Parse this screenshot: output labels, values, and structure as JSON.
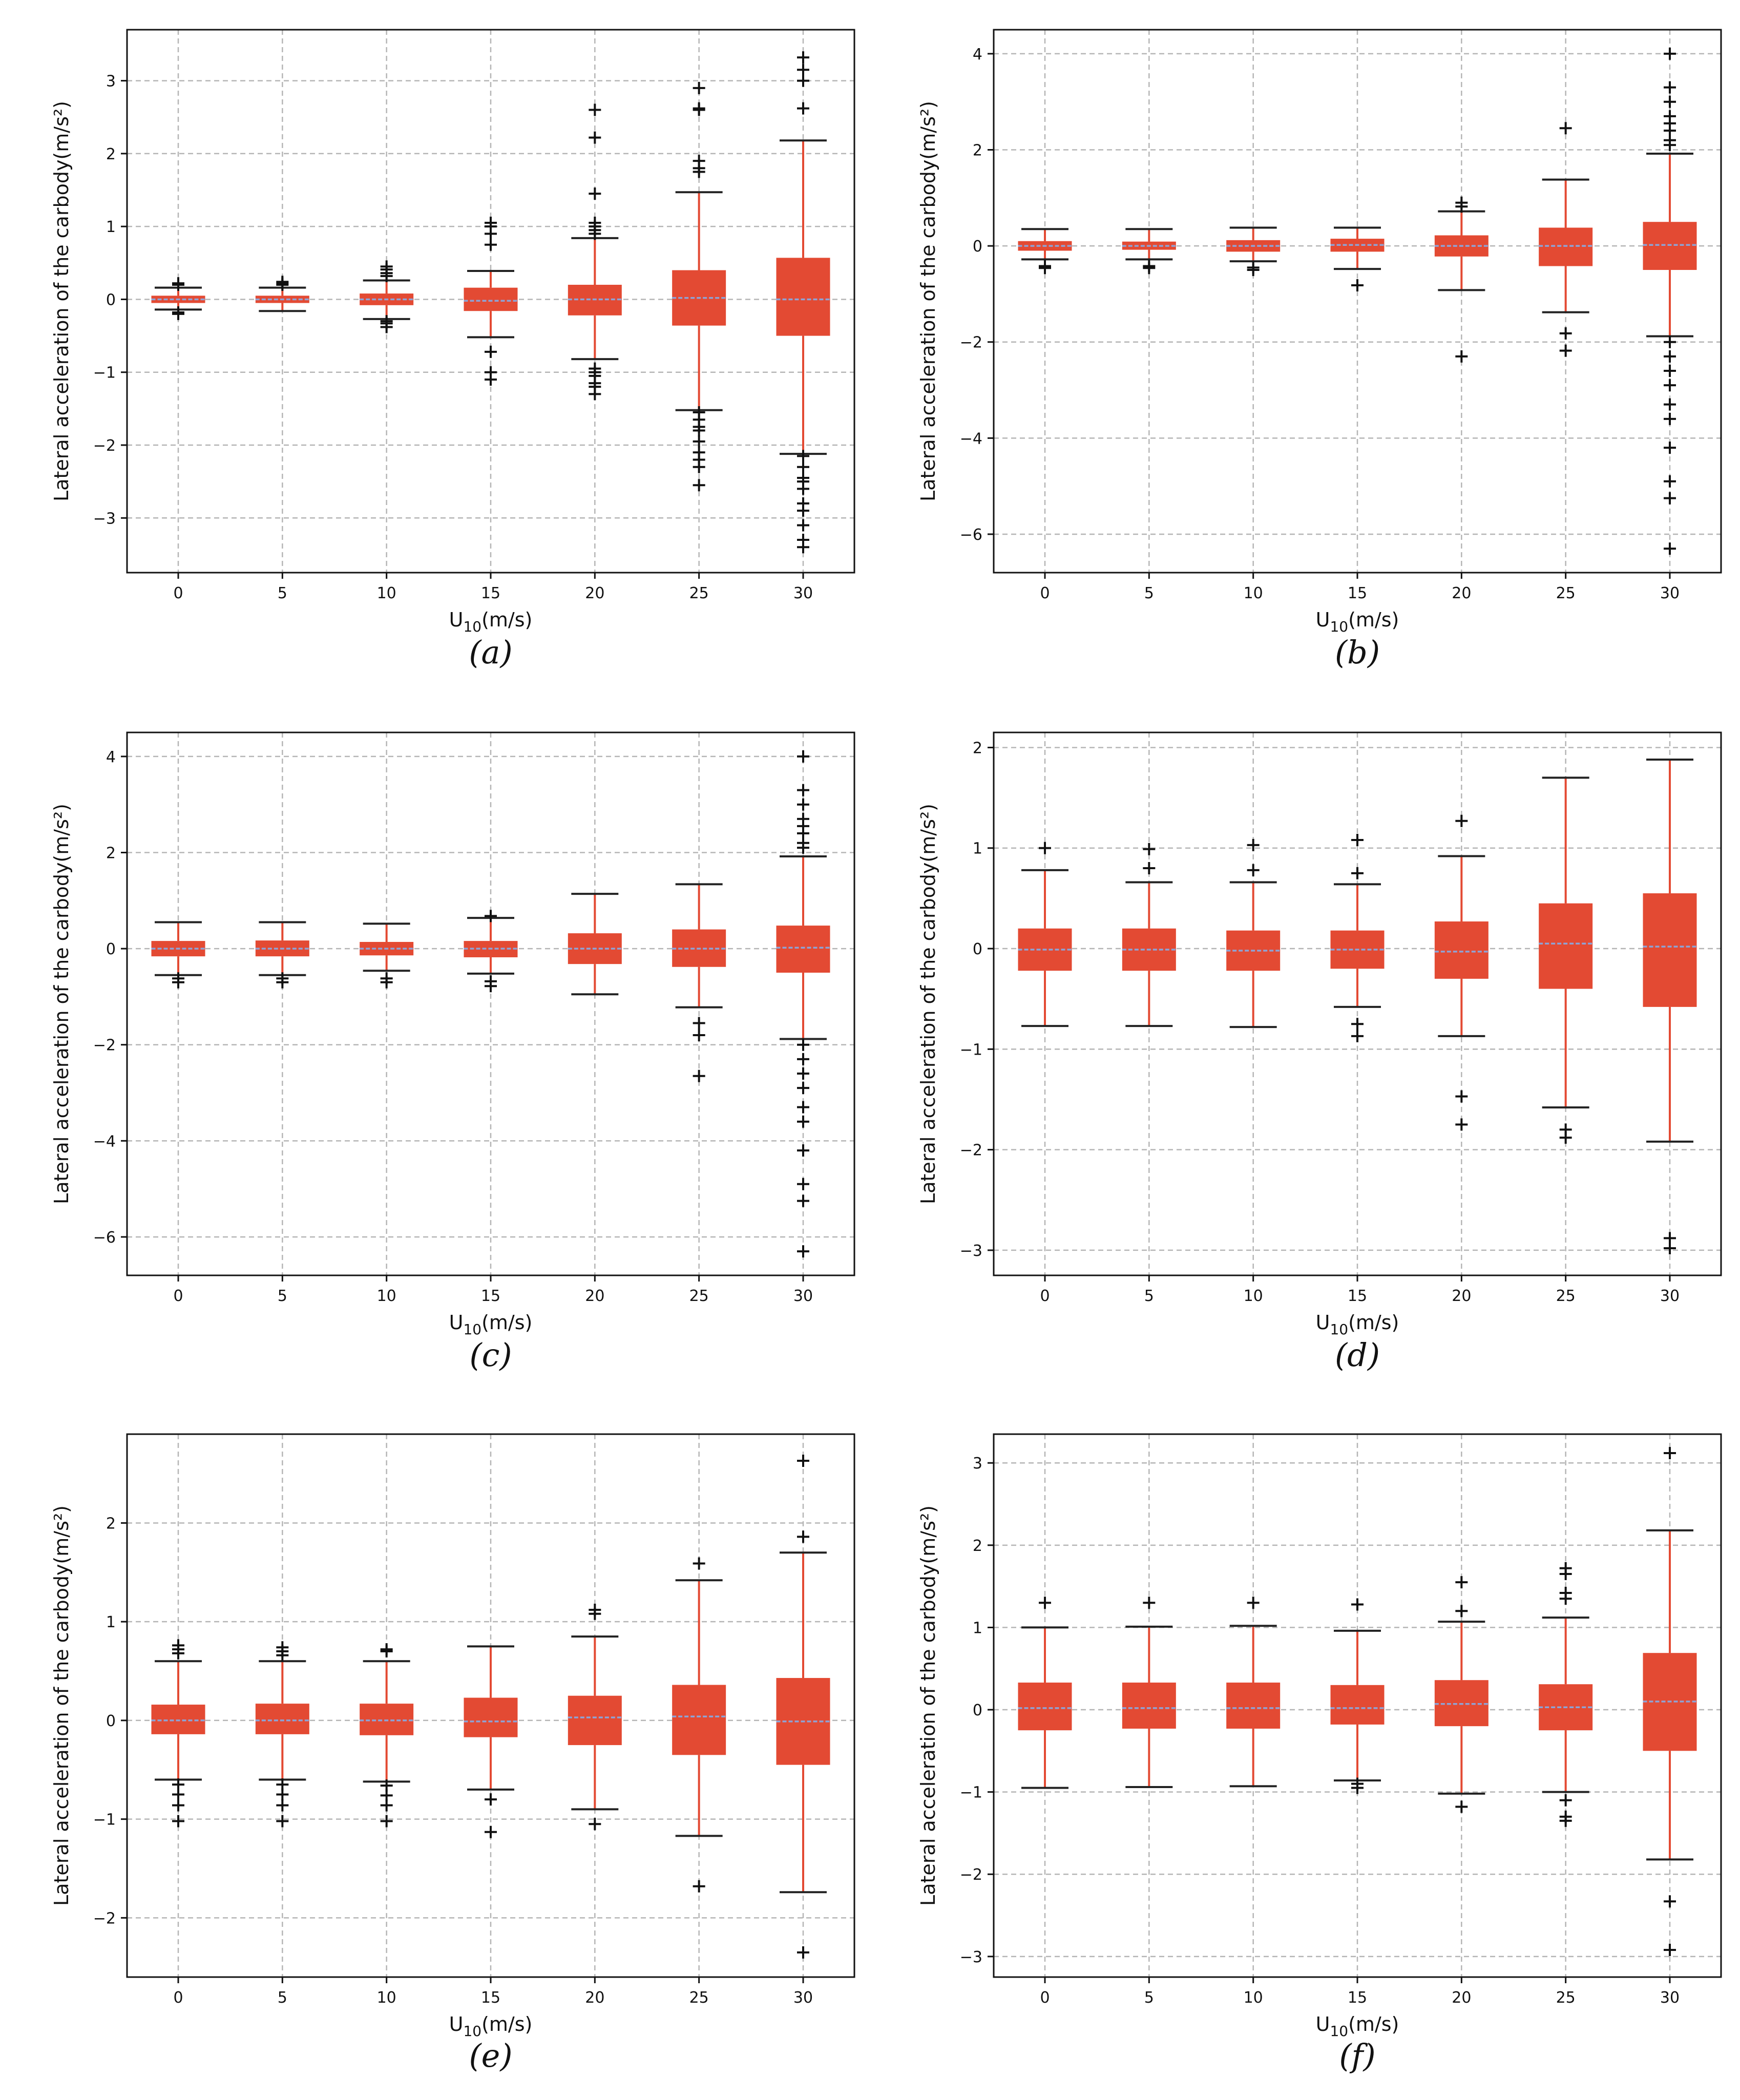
{
  "colors": {
    "box": "#e34a33",
    "median": "#8ea3d6",
    "grid": "#b5b5b5",
    "outlier": "#111111"
  },
  "chart_data": [
    {
      "type": "box",
      "panel": "(a)",
      "xlabel_main": "U",
      "xlabel_sub": "10",
      "xlabel_unit": "(m/s)",
      "ylabel": "Lateral acceleration of the carbody(m/s²)",
      "categories": [
        "0",
        "5",
        "10",
        "15",
        "20",
        "25",
        "30"
      ],
      "yticks": [
        -3,
        -2,
        -1,
        0,
        1,
        2,
        3
      ],
      "ylim": [
        -3.75,
        3.7
      ],
      "boxes": [
        {
          "q1": -0.05,
          "median": 0.0,
          "q3": 0.05,
          "whisker_low": -0.14,
          "whisker_high": 0.16,
          "outliers": [
            0.2,
            0.22,
            -0.18,
            -0.2
          ]
        },
        {
          "q1": -0.05,
          "median": 0.0,
          "q3": 0.05,
          "whisker_low": -0.16,
          "whisker_high": 0.16,
          "outliers": [
            0.2,
            0.22,
            0.24
          ]
        },
        {
          "q1": -0.08,
          "median": 0.0,
          "q3": 0.08,
          "whisker_low": -0.27,
          "whisker_high": 0.26,
          "outliers": [
            0.32,
            0.36,
            0.41,
            0.45,
            -0.3,
            -0.33,
            -0.38
          ]
        },
        {
          "q1": -0.16,
          "median": -0.02,
          "q3": 0.16,
          "whisker_low": -0.52,
          "whisker_high": 0.39,
          "outliers": [
            0.75,
            0.9,
            1.0,
            1.05,
            -0.72,
            -1.0,
            -1.1
          ]
        },
        {
          "q1": -0.22,
          "median": 0.0,
          "q3": 0.2,
          "whisker_low": -0.82,
          "whisker_high": 0.84,
          "outliers": [
            0.9,
            0.95,
            1.0,
            1.05,
            1.45,
            2.22,
            2.6,
            -0.95,
            -1.0,
            -1.05,
            -1.15,
            -1.2,
            -1.3
          ]
        },
        {
          "q1": -0.36,
          "median": 0.02,
          "q3": 0.4,
          "whisker_low": -1.52,
          "whisker_high": 1.47,
          "outliers": [
            1.75,
            1.8,
            1.9,
            2.6,
            2.62,
            2.9,
            -1.55,
            -1.65,
            -1.75,
            -1.8,
            -1.95,
            -2.1,
            -2.2,
            -2.3,
            -2.55
          ]
        },
        {
          "q1": -0.5,
          "median": 0.0,
          "q3": 0.57,
          "whisker_low": -2.12,
          "whisker_high": 2.18,
          "outliers": [
            2.62,
            3.0,
            3.15,
            3.32,
            -2.15,
            -2.3,
            -2.45,
            -2.5,
            -2.6,
            -2.8,
            -2.9,
            -3.1,
            -3.3,
            -3.4
          ]
        }
      ]
    },
    {
      "type": "box",
      "panel": "(b)",
      "xlabel_main": "U",
      "xlabel_sub": "10",
      "xlabel_unit": "(m/s)",
      "ylabel": "Lateral acceleration of the carbody(m/s²)",
      "categories": [
        "0",
        "5",
        "10",
        "15",
        "20",
        "25",
        "30"
      ],
      "yticks": [
        -6,
        -4,
        -2,
        0,
        2,
        4
      ],
      "ylim": [
        -6.8,
        4.5
      ],
      "boxes": [
        {
          "q1": -0.1,
          "median": 0.0,
          "q3": 0.1,
          "whisker_low": -0.28,
          "whisker_high": 0.35,
          "outliers": [
            -0.42,
            -0.46
          ]
        },
        {
          "q1": -0.08,
          "median": 0.0,
          "q3": 0.09,
          "whisker_low": -0.28,
          "whisker_high": 0.35,
          "outliers": [
            -0.42,
            -0.46
          ]
        },
        {
          "q1": -0.12,
          "median": 0.0,
          "q3": 0.12,
          "whisker_low": -0.32,
          "whisker_high": 0.38,
          "outliers": [
            -0.45,
            -0.5
          ]
        },
        {
          "q1": -0.12,
          "median": 0.02,
          "q3": 0.15,
          "whisker_low": -0.48,
          "whisker_high": 0.38,
          "outliers": [
            -0.82
          ]
        },
        {
          "q1": -0.22,
          "median": 0.0,
          "q3": 0.22,
          "whisker_low": -0.92,
          "whisker_high": 0.72,
          "outliers": [
            0.82,
            0.9,
            -2.3
          ]
        },
        {
          "q1": -0.42,
          "median": 0.0,
          "q3": 0.38,
          "whisker_low": -1.38,
          "whisker_high": 1.38,
          "outliers": [
            2.45,
            -1.82,
            -2.18
          ]
        },
        {
          "q1": -0.5,
          "median": 0.02,
          "q3": 0.5,
          "whisker_low": -1.88,
          "whisker_high": 1.92,
          "outliers": [
            2.1,
            2.2,
            2.4,
            2.55,
            2.7,
            3.0,
            3.3,
            4.0,
            -2.0,
            -2.3,
            -2.6,
            -2.9,
            -3.3,
            -3.6,
            -4.2,
            -4.9,
            -5.25,
            -6.3
          ]
        }
      ]
    },
    {
      "type": "box",
      "panel": "(c)",
      "xlabel_main": "U",
      "xlabel_sub": "10",
      "xlabel_unit": "(m/s)",
      "ylabel": "Lateral acceleration of the carbody(m/s²)",
      "categories": [
        "0",
        "5",
        "10",
        "15",
        "20",
        "25",
        "30"
      ],
      "yticks": [
        -6,
        -4,
        -2,
        0,
        2,
        4
      ],
      "ylim": [
        -6.8,
        4.5
      ],
      "boxes": [
        {
          "q1": -0.16,
          "median": 0.0,
          "q3": 0.16,
          "whisker_low": -0.55,
          "whisker_high": 0.55,
          "outliers": [
            -0.62,
            -0.7
          ]
        },
        {
          "q1": -0.16,
          "median": 0.0,
          "q3": 0.17,
          "whisker_low": -0.55,
          "whisker_high": 0.55,
          "outliers": [
            -0.62,
            -0.7
          ]
        },
        {
          "q1": -0.14,
          "median": 0.0,
          "q3": 0.14,
          "whisker_low": -0.46,
          "whisker_high": 0.52,
          "outliers": [
            -0.62,
            -0.7
          ]
        },
        {
          "q1": -0.18,
          "median": 0.0,
          "q3": 0.16,
          "whisker_low": -0.52,
          "whisker_high": 0.64,
          "outliers": [
            0.68,
            -0.68,
            -0.78
          ]
        },
        {
          "q1": -0.32,
          "median": 0.0,
          "q3": 0.32,
          "whisker_low": -0.95,
          "whisker_high": 1.14,
          "outliers": []
        },
        {
          "q1": -0.38,
          "median": 0.0,
          "q3": 0.4,
          "whisker_low": -1.22,
          "whisker_high": 1.34,
          "outliers": [
            -1.55,
            -1.8,
            -2.65
          ]
        },
        {
          "q1": -0.5,
          "median": 0.02,
          "q3": 0.48,
          "whisker_low": -1.88,
          "whisker_high": 1.92,
          "outliers": [
            2.1,
            2.2,
            2.4,
            2.55,
            2.7,
            3.0,
            3.3,
            4.0,
            -2.0,
            -2.3,
            -2.6,
            -2.9,
            -3.3,
            -3.6,
            -4.2,
            -4.9,
            -5.25,
            -6.3
          ]
        }
      ]
    },
    {
      "type": "box",
      "panel": "(d)",
      "xlabel_main": "U",
      "xlabel_sub": "10",
      "xlabel_unit": "(m/s)",
      "ylabel": "Lateral acceleration of the carbody(m/s²)",
      "categories": [
        "0",
        "5",
        "10",
        "15",
        "20",
        "25",
        "30"
      ],
      "yticks": [
        -3,
        -2,
        -1,
        0,
        1,
        2
      ],
      "ylim": [
        -3.25,
        2.15
      ],
      "boxes": [
        {
          "q1": -0.22,
          "median": -0.01,
          "q3": 0.2,
          "whisker_low": -0.77,
          "whisker_high": 0.78,
          "outliers": [
            1.0
          ]
        },
        {
          "q1": -0.22,
          "median": -0.01,
          "q3": 0.2,
          "whisker_low": -0.77,
          "whisker_high": 0.66,
          "outliers": [
            0.8,
            0.99
          ]
        },
        {
          "q1": -0.22,
          "median": -0.02,
          "q3": 0.18,
          "whisker_low": -0.78,
          "whisker_high": 0.66,
          "outliers": [
            0.78,
            1.03
          ]
        },
        {
          "q1": -0.2,
          "median": -0.01,
          "q3": 0.18,
          "whisker_low": -0.58,
          "whisker_high": 0.64,
          "outliers": [
            0.75,
            1.08,
            -0.75,
            -0.87
          ]
        },
        {
          "q1": -0.3,
          "median": -0.03,
          "q3": 0.27,
          "whisker_low": -0.87,
          "whisker_high": 0.92,
          "outliers": [
            1.27,
            -1.47,
            -1.75
          ]
        },
        {
          "q1": -0.4,
          "median": 0.05,
          "q3": 0.45,
          "whisker_low": -1.58,
          "whisker_high": 1.7,
          "outliers": [
            -1.8,
            -1.88
          ]
        },
        {
          "q1": -0.58,
          "median": 0.02,
          "q3": 0.55,
          "whisker_low": -1.92,
          "whisker_high": 1.88,
          "outliers": [
            -2.88,
            -2.98
          ]
        }
      ]
    },
    {
      "type": "box",
      "panel": "(e)",
      "xlabel_main": "U",
      "xlabel_sub": "10",
      "xlabel_unit": "(m/s)",
      "ylabel": "Lateral acceleration of the carbody(m/s²)",
      "categories": [
        "0",
        "5",
        "10",
        "15",
        "20",
        "25",
        "30"
      ],
      "yticks": [
        -2,
        -1,
        0,
        1,
        2
      ],
      "ylim": [
        -2.6,
        2.9
      ],
      "boxes": [
        {
          "q1": -0.14,
          "median": 0.0,
          "q3": 0.16,
          "whisker_low": -0.6,
          "whisker_high": 0.6,
          "outliers": [
            0.68,
            0.72,
            0.76,
            -0.65,
            -0.75,
            -0.86,
            -1.02
          ]
        },
        {
          "q1": -0.14,
          "median": 0.0,
          "q3": 0.17,
          "whisker_low": -0.6,
          "whisker_high": 0.6,
          "outliers": [
            0.66,
            0.7,
            0.74,
            -0.65,
            -0.75,
            -0.86,
            -1.02
          ]
        },
        {
          "q1": -0.15,
          "median": 0.0,
          "q3": 0.17,
          "whisker_low": -0.62,
          "whisker_high": 0.6,
          "outliers": [
            0.7,
            0.72,
            -0.66,
            -0.76,
            -0.86,
            -1.02
          ]
        },
        {
          "q1": -0.17,
          "median": -0.01,
          "q3": 0.23,
          "whisker_low": -0.7,
          "whisker_high": 0.75,
          "outliers": [
            -0.8,
            -1.13
          ]
        },
        {
          "q1": -0.25,
          "median": 0.03,
          "q3": 0.25,
          "whisker_low": -0.9,
          "whisker_high": 0.85,
          "outliers": [
            1.08,
            1.12,
            -1.05
          ]
        },
        {
          "q1": -0.35,
          "median": 0.04,
          "q3": 0.36,
          "whisker_low": -1.17,
          "whisker_high": 1.42,
          "outliers": [
            1.59,
            -1.68
          ]
        },
        {
          "q1": -0.45,
          "median": -0.01,
          "q3": 0.43,
          "whisker_low": -1.74,
          "whisker_high": 1.7,
          "outliers": [
            1.86,
            2.63,
            -2.35
          ]
        }
      ]
    },
    {
      "type": "box",
      "panel": "(f)",
      "xlabel_main": "U",
      "xlabel_sub": "10",
      "xlabel_unit": "(m/s)",
      "ylabel": "Lateral acceleration of the carbody(m/s²)",
      "categories": [
        "0",
        "5",
        "10",
        "15",
        "20",
        "25",
        "30"
      ],
      "yticks": [
        -3,
        -2,
        -1,
        0,
        1,
        2,
        3
      ],
      "ylim": [
        -3.25,
        3.35
      ],
      "boxes": [
        {
          "q1": -0.25,
          "median": 0.02,
          "q3": 0.33,
          "whisker_low": -0.95,
          "whisker_high": 1.0,
          "outliers": [
            1.3
          ]
        },
        {
          "q1": -0.23,
          "median": 0.02,
          "q3": 0.33,
          "whisker_low": -0.94,
          "whisker_high": 1.01,
          "outliers": [
            1.3
          ]
        },
        {
          "q1": -0.23,
          "median": 0.02,
          "q3": 0.33,
          "whisker_low": -0.93,
          "whisker_high": 1.02,
          "outliers": [
            1.3
          ]
        },
        {
          "q1": -0.18,
          "median": 0.02,
          "q3": 0.3,
          "whisker_low": -0.86,
          "whisker_high": 0.96,
          "outliers": [
            1.28,
            -0.9,
            -0.95
          ]
        },
        {
          "q1": -0.2,
          "median": 0.07,
          "q3": 0.36,
          "whisker_low": -1.02,
          "whisker_high": 1.07,
          "outliers": [
            1.2,
            1.55,
            -1.18
          ]
        },
        {
          "q1": -0.25,
          "median": 0.03,
          "q3": 0.31,
          "whisker_low": -1.0,
          "whisker_high": 1.12,
          "outliers": [
            1.35,
            1.42,
            1.65,
            1.72,
            -1.1,
            -1.3,
            -1.35
          ]
        },
        {
          "q1": -0.5,
          "median": 0.1,
          "q3": 0.69,
          "whisker_low": -1.82,
          "whisker_high": 2.18,
          "outliers": [
            3.12,
            -2.33,
            -2.92
          ]
        }
      ]
    }
  ]
}
